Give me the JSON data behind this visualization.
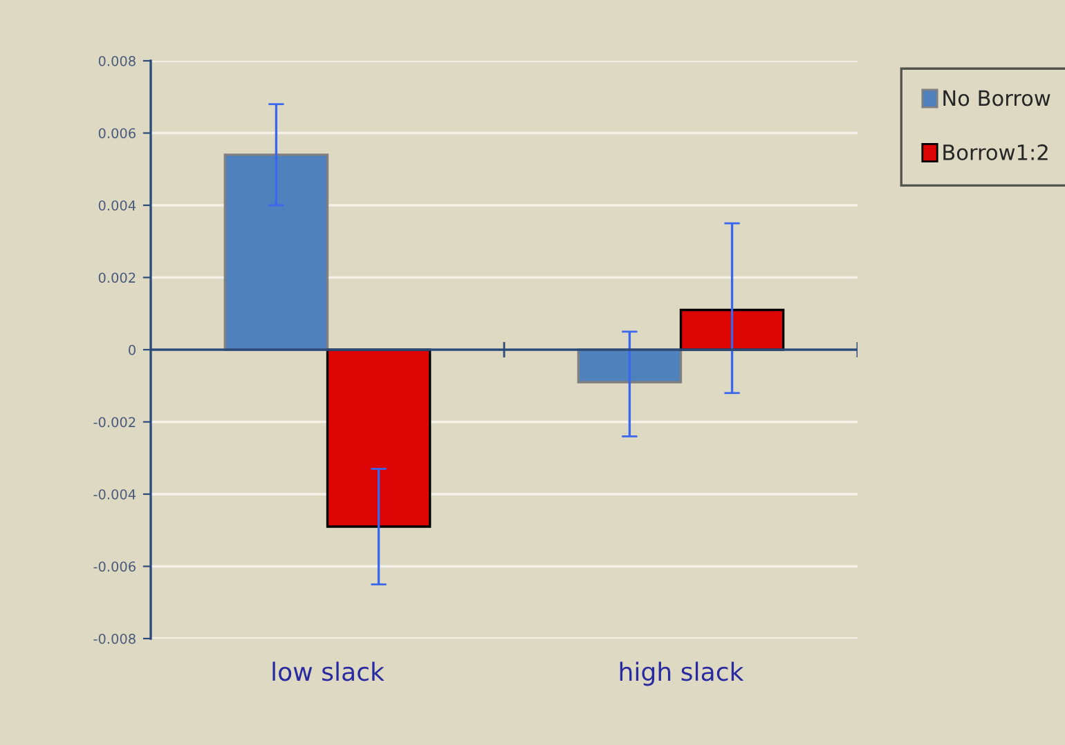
{
  "chart_data": {
    "type": "bar",
    "categories": [
      "low slack",
      "high slack"
    ],
    "series": [
      {
        "name": "No Borrow",
        "color": "#4f81bd",
        "values": [
          0.0054,
          -0.0009
        ],
        "errors": [
          [
            0.004,
            0.0068
          ],
          [
            -0.0024,
            0.0005
          ]
        ]
      },
      {
        "name": "Borrow1:2",
        "color": "#dd0404",
        "values": [
          -0.0049,
          0.0011
        ],
        "errors": [
          [
            -0.0065,
            -0.0033
          ],
          [
            -0.0012,
            0.0035
          ]
        ]
      }
    ],
    "ylim": [
      -0.008,
      0.008
    ],
    "yticks": [
      -0.008,
      -0.006,
      -0.004,
      -0.002,
      0,
      0.002,
      0.004,
      0.006,
      0.008
    ],
    "grid": "y",
    "legend": "top right",
    "ref_lines": [
      {
        "axis": "y",
        "value": 0,
        "color": "#2a4a7a"
      }
    ]
  }
}
